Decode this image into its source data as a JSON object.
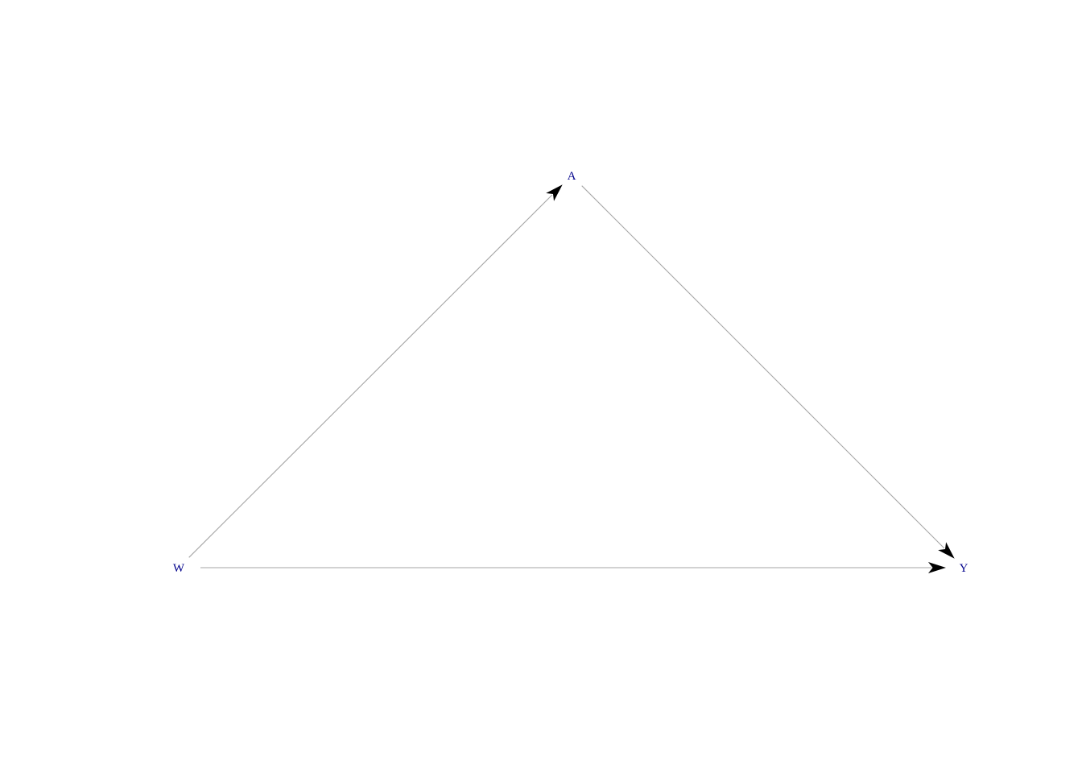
{
  "diagram": {
    "type": "directed-acyclic-graph",
    "label_color": "#00008B",
    "edge_color": "#a6a6a6",
    "arrowhead_color": "#000000",
    "nodes": [
      {
        "id": "A",
        "label": "A"
      },
      {
        "id": "W",
        "label": "W"
      },
      {
        "id": "Y",
        "label": "Y"
      }
    ],
    "edges": [
      {
        "from": "W",
        "to": "A"
      },
      {
        "from": "A",
        "to": "Y"
      },
      {
        "from": "W",
        "to": "Y"
      }
    ]
  }
}
